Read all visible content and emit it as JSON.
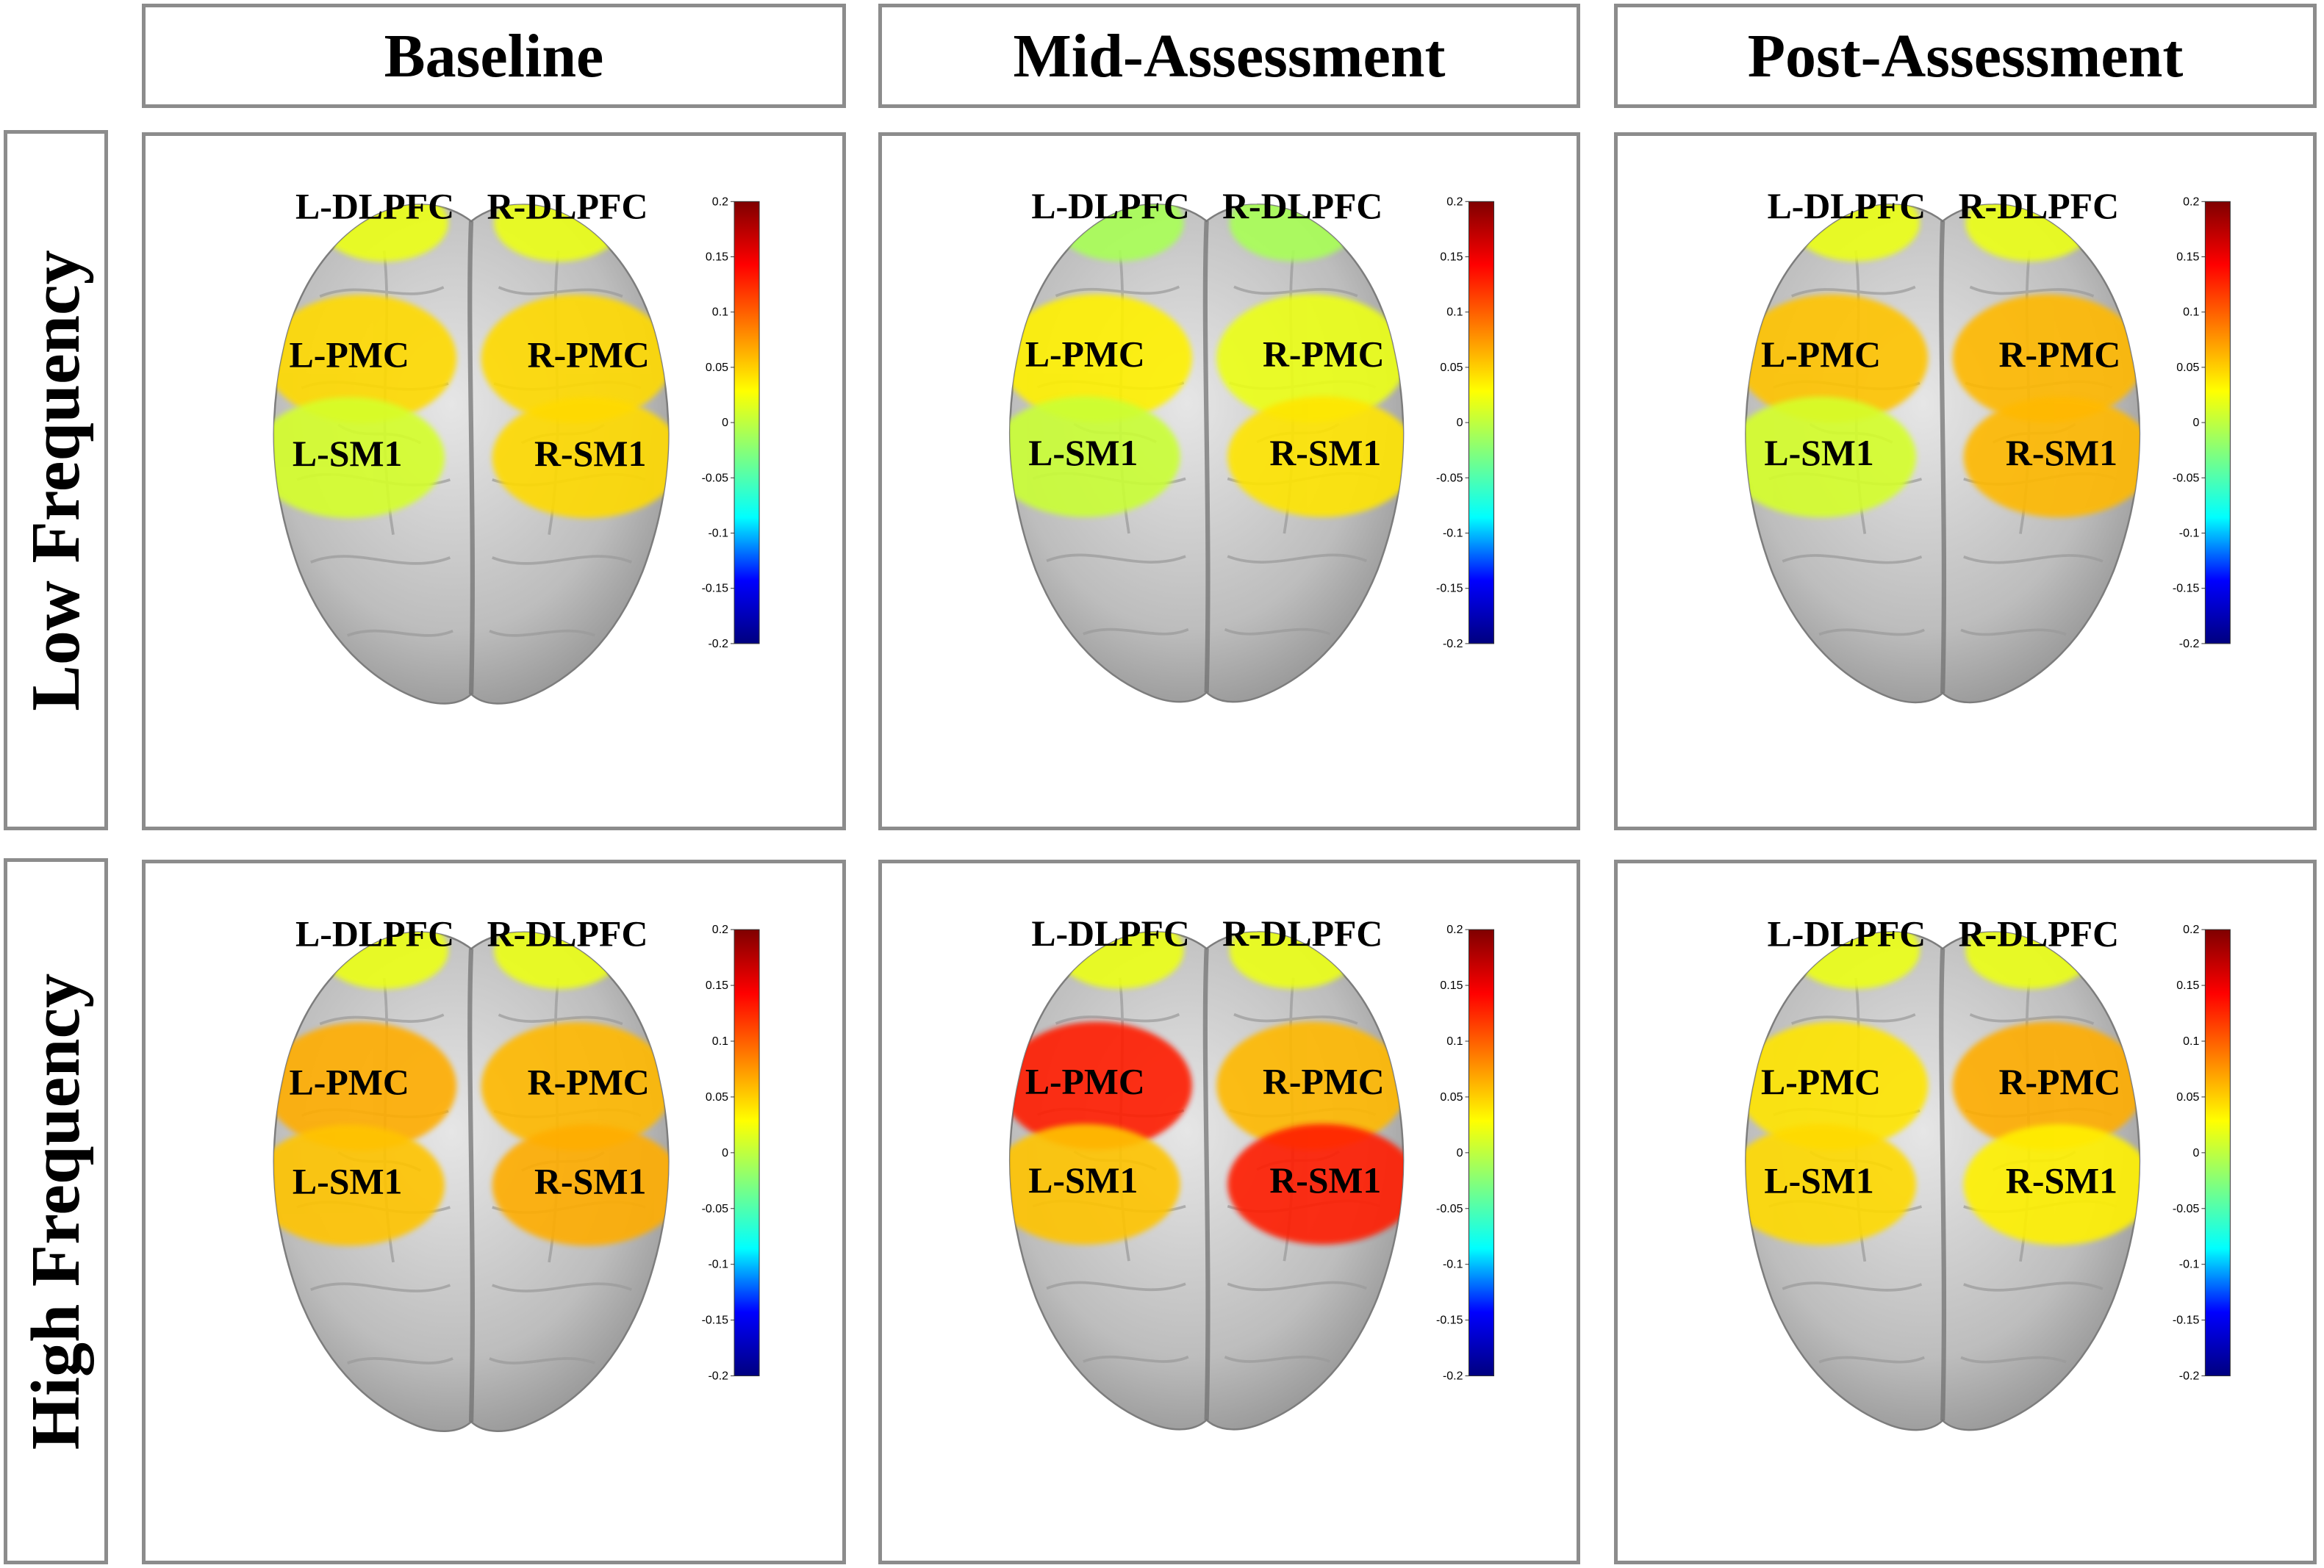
{
  "column_headers": [
    "Baseline",
    "Mid-Assessment",
    "Post-Assessment"
  ],
  "row_headers": [
    "Low Frequency",
    "High Frequency"
  ],
  "regions": [
    "L-DLPFC",
    "R-DLPFC",
    "L-PMC",
    "R-PMC",
    "L-SM1",
    "R-SM1"
  ],
  "colorbar": {
    "ticks": [
      "0.2",
      "0.15",
      "0.1",
      "0.05",
      "0",
      "-0.05",
      "-0.1",
      "-0.15",
      "-0.2"
    ],
    "min": -0.2,
    "max": 0.2,
    "colormap": [
      "#00007f",
      "#0000ff",
      "#00ffff",
      "#7fff7f",
      "#ffff00",
      "#ff7f00",
      "#ff0000",
      "#7f0000"
    ]
  },
  "panels": [
    {
      "row": "Low Frequency",
      "column": "Baseline",
      "values": {
        "L-DLPFC": 0.02,
        "R-DLPFC": 0.02,
        "L-PMC": 0.045,
        "R-PMC": 0.045,
        "L-SM1": 0.01,
        "R-SM1": 0.045
      }
    },
    {
      "row": "Low Frequency",
      "column": "Mid-Assessment",
      "values": {
        "L-DLPFC": -0.01,
        "R-DLPFC": -0.01,
        "L-PMC": 0.035,
        "R-PMC": 0.02,
        "L-SM1": 0.005,
        "R-SM1": 0.04
      }
    },
    {
      "row": "Low Frequency",
      "column": "Post-Assessment",
      "values": {
        "L-DLPFC": 0.02,
        "R-DLPFC": 0.02,
        "L-PMC": 0.055,
        "R-PMC": 0.06,
        "L-SM1": 0.01,
        "R-SM1": 0.06
      }
    },
    {
      "row": "High Frequency",
      "column": "Baseline",
      "values": {
        "L-DLPFC": 0.02,
        "R-DLPFC": 0.02,
        "L-PMC": 0.065,
        "R-PMC": 0.06,
        "L-SM1": 0.055,
        "R-SM1": 0.065
      }
    },
    {
      "row": "High Frequency",
      "column": "Mid-Assessment",
      "values": {
        "L-DLPFC": 0.02,
        "R-DLPFC": 0.02,
        "L-PMC": 0.13,
        "R-PMC": 0.06,
        "L-SM1": 0.055,
        "R-SM1": 0.13
      }
    },
    {
      "row": "High Frequency",
      "column": "Post-Assessment",
      "values": {
        "L-DLPFC": 0.02,
        "R-DLPFC": 0.02,
        "L-PMC": 0.04,
        "R-PMC": 0.065,
        "L-SM1": 0.045,
        "R-SM1": 0.035
      }
    }
  ]
}
